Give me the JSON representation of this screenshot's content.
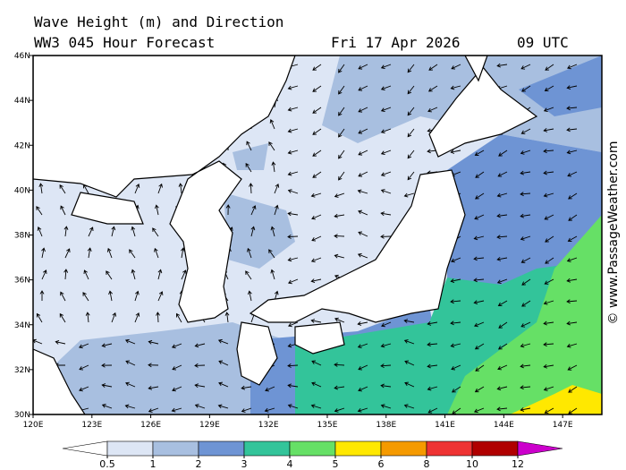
{
  "header": {
    "title": "Wave Height (m) and Direction",
    "subtitle": "WW3 045 Hour Forecast",
    "date": "Fri 17 Apr 2026",
    "time": "09 UTC"
  },
  "map": {
    "xlim": [
      120,
      149
    ],
    "ylim": [
      30,
      46
    ],
    "xticks": [
      {
        "value": 120,
        "label": "120E"
      },
      {
        "value": 123,
        "label": "123E"
      },
      {
        "value": 126,
        "label": "126E"
      },
      {
        "value": 129,
        "label": "129E"
      },
      {
        "value": 132,
        "label": "132E"
      },
      {
        "value": 135,
        "label": "135E"
      },
      {
        "value": 138,
        "label": "138E"
      },
      {
        "value": 141,
        "label": "141E"
      },
      {
        "value": 144,
        "label": "144E"
      },
      {
        "value": 147,
        "label": "147E"
      }
    ],
    "yticks": [
      {
        "value": 30,
        "label": "30N"
      },
      {
        "value": 32,
        "label": "32N"
      },
      {
        "value": 34,
        "label": "34N"
      },
      {
        "value": 36,
        "label": "36N"
      },
      {
        "value": 38,
        "label": "38N"
      },
      {
        "value": 40,
        "label": "40N"
      },
      {
        "value": 42,
        "label": "42N"
      },
      {
        "value": 44,
        "label": "44N"
      },
      {
        "value": 46,
        "label": "46N"
      }
    ]
  },
  "colorbar": {
    "levels": [
      0.5,
      1,
      2,
      3,
      4,
      5,
      6,
      8,
      10,
      12
    ],
    "colors": [
      "#dde6f5",
      "#a8bfe0",
      "#6e94d4",
      "#33c49a",
      "#66e066",
      "#ffe800",
      "#f59a00",
      "#ee3333",
      "#b00000"
    ],
    "under": "#ffffff",
    "over": "#cc00cc"
  },
  "credit": "© www.PassageWeather.com"
}
